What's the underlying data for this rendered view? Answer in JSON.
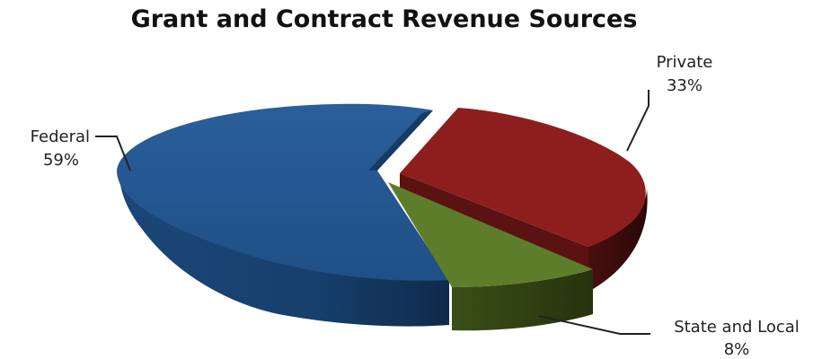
{
  "chart_data": {
    "type": "pie",
    "title": "Grant and Contract Revenue Sources",
    "slices": [
      {
        "label": "Federal",
        "value": 59,
        "value_label": "59%",
        "color": "#1f4f86"
      },
      {
        "label": "Private",
        "value": 33,
        "value_label": "33%",
        "color": "#8e1e1e"
      },
      {
        "label": "State and Local",
        "value": 8,
        "value_label": "8%",
        "color": "#5e7d2a"
      }
    ],
    "style": "3d-exploded",
    "legend": "none"
  }
}
